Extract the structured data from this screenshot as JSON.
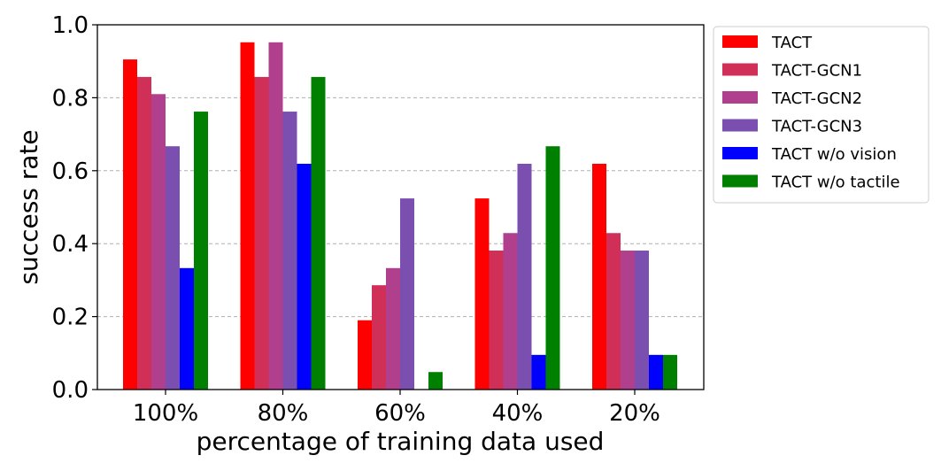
{
  "chart_data": {
    "type": "bar",
    "categories": [
      "100%",
      "80%",
      "60%",
      "40%",
      "20%"
    ],
    "series": [
      {
        "name": "TACT",
        "color": "#ff0000",
        "values": [
          0.905,
          0.952,
          0.19,
          0.524,
          0.619
        ]
      },
      {
        "name": "TACT-GCN1",
        "color": "#d02f57",
        "values": [
          0.857,
          0.857,
          0.286,
          0.381,
          0.429
        ]
      },
      {
        "name": "TACT-GCN2",
        "color": "#b03f8e",
        "values": [
          0.81,
          0.952,
          0.333,
          0.429,
          0.381
        ]
      },
      {
        "name": "TACT-GCN3",
        "color": "#7a4fb0",
        "values": [
          0.667,
          0.762,
          0.524,
          0.619,
          0.381
        ]
      },
      {
        "name": "TACT w/o vision",
        "color": "#0000ff",
        "values": [
          0.333,
          0.619,
          0.0,
          0.095,
          0.095
        ]
      },
      {
        "name": "TACT w/o tactile",
        "color": "#008000",
        "values": [
          0.762,
          0.857,
          0.048,
          0.667,
          0.095
        ]
      }
    ],
    "title": "",
    "xlabel": "percentage of training data used",
    "ylabel": "success rate",
    "ylim": [
      0,
      1.0
    ],
    "yticks": [
      "0.0",
      "0.2",
      "0.4",
      "0.6",
      "0.8",
      "1.0"
    ],
    "grid": "horizontal dashed",
    "legend_position": "outside-right-top"
  }
}
